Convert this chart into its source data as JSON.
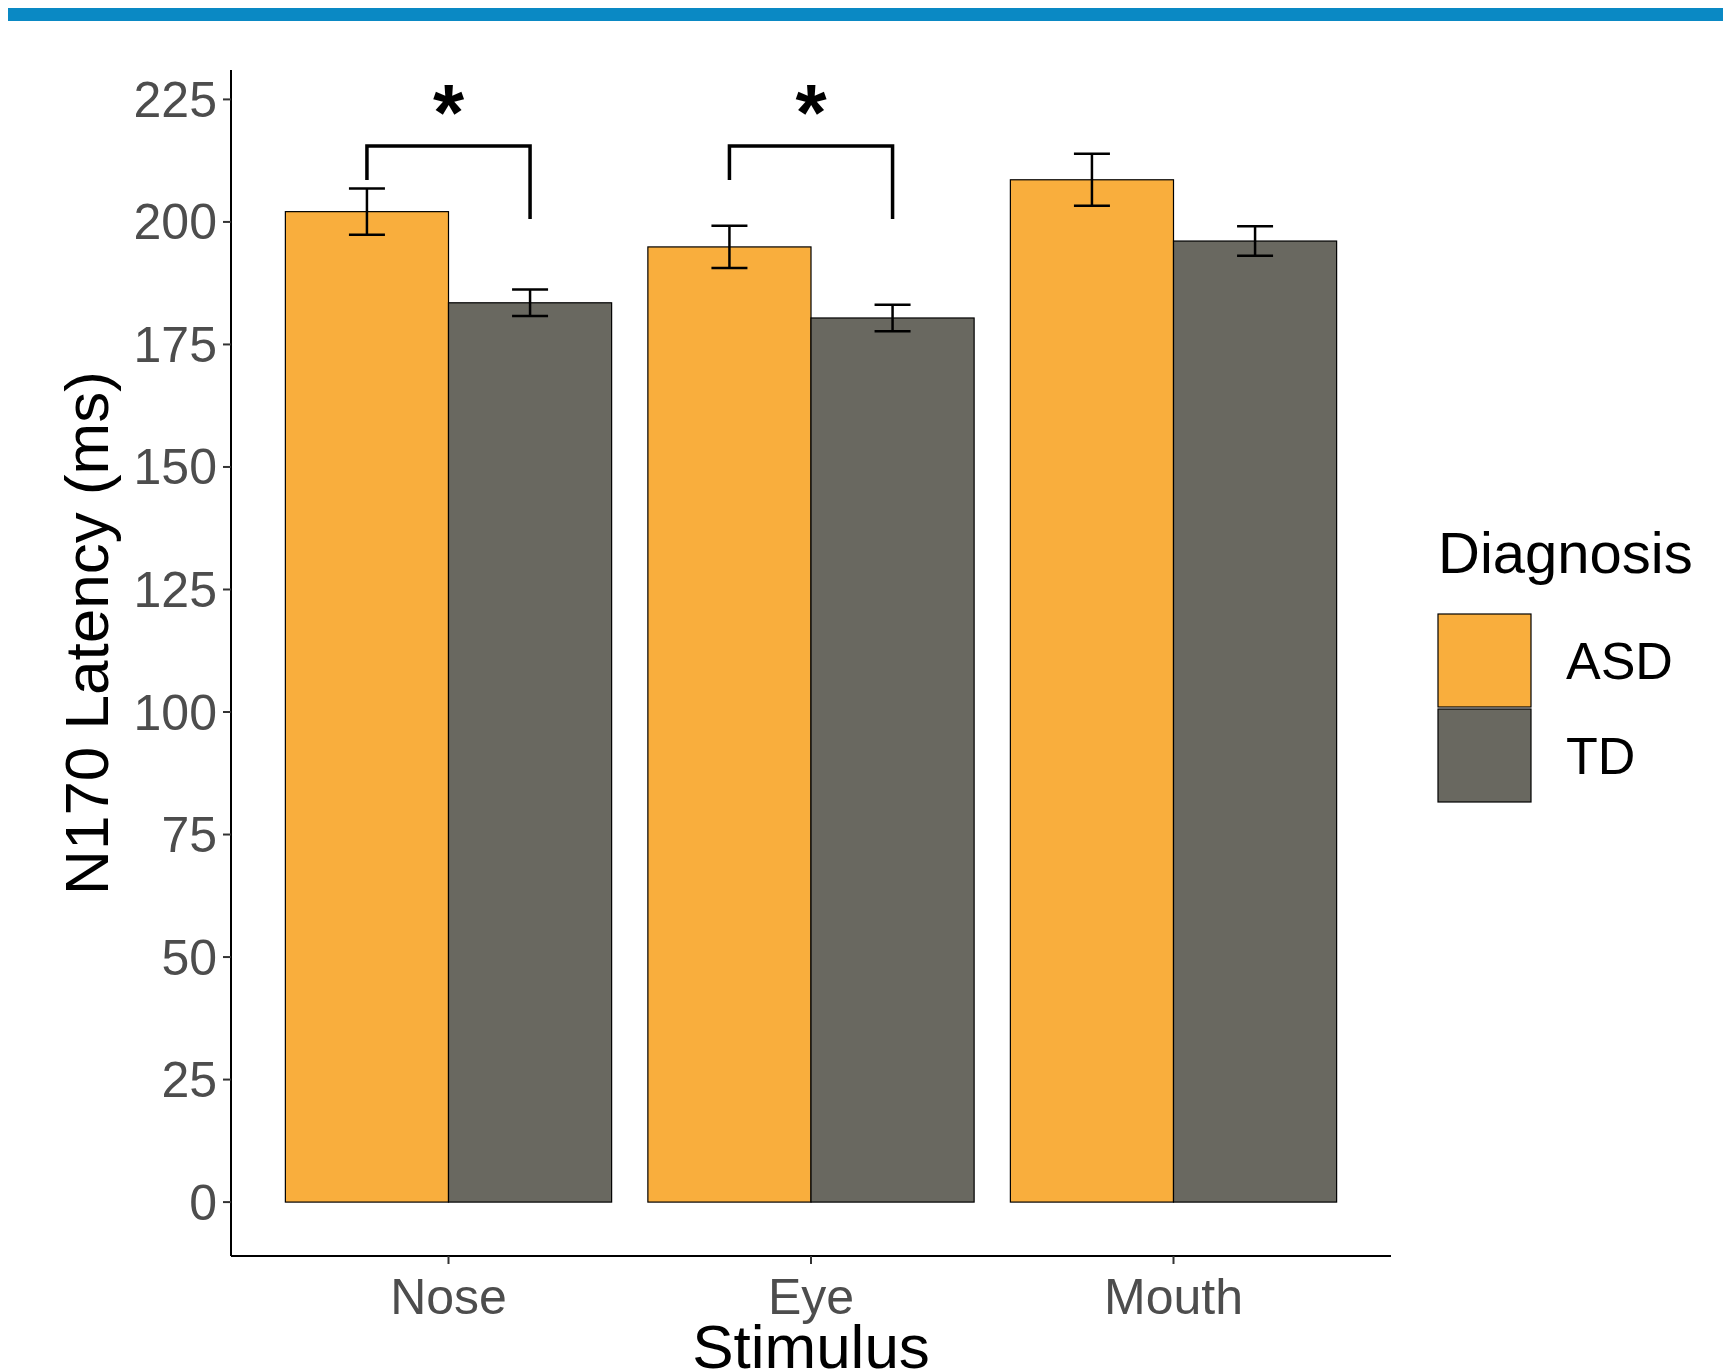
{
  "chart_data": {
    "type": "bar",
    "xlabel": "Stimulus",
    "ylabel": "N170 Latency (ms)",
    "legend_title": "Diagnosis",
    "legend": "right",
    "grid": false,
    "categories": [
      "Nose",
      "Eye",
      "Mouth"
    ],
    "ylim": [
      -11,
      231
    ],
    "yticks": [
      0,
      25,
      50,
      75,
      100,
      125,
      150,
      175,
      200,
      225
    ],
    "series": [
      {
        "name": "ASD",
        "color": "#f9ae3d",
        "values": [
          202.1,
          194.9,
          208.6
        ],
        "errors": [
          4.7,
          4.3,
          5.3
        ]
      },
      {
        "name": "TD",
        "color": "#696860",
        "values": [
          183.5,
          180.4,
          196.1
        ],
        "errors": [
          2.7,
          2.7,
          3.0
        ]
      }
    ],
    "annotations": [
      "*",
      "*"
    ]
  }
}
